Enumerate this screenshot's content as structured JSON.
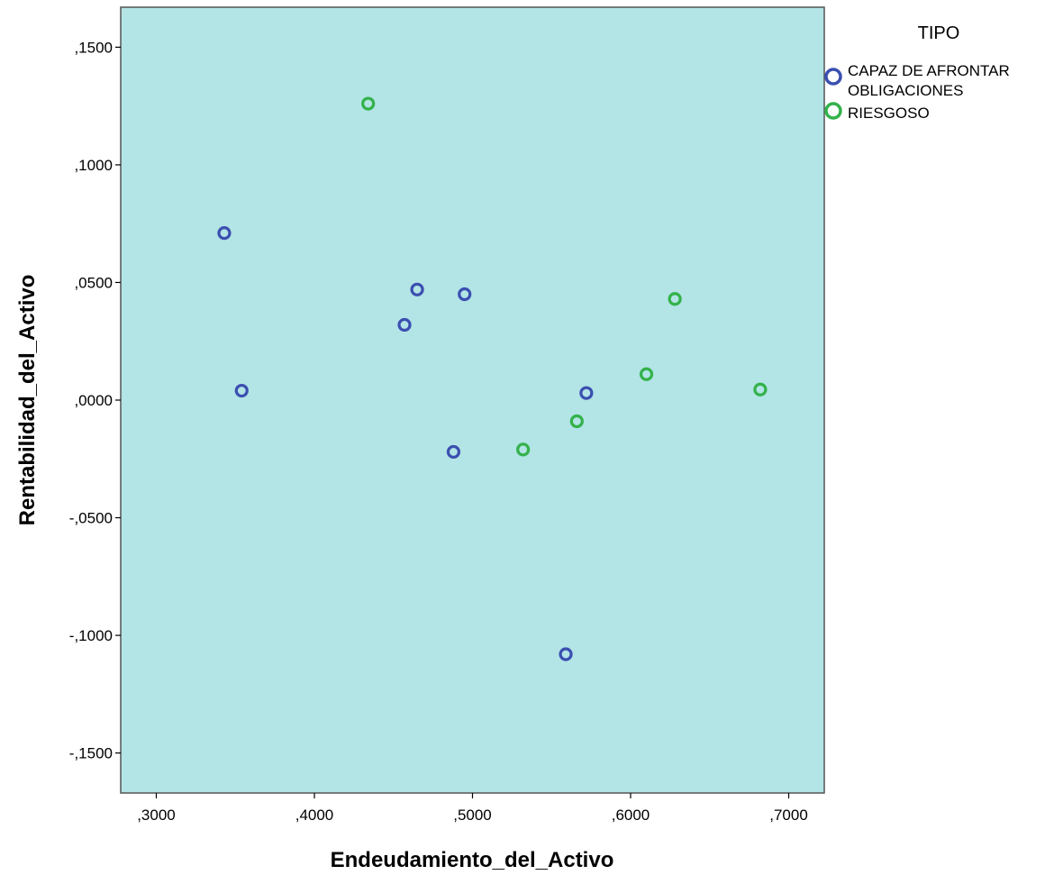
{
  "chart_data": {
    "type": "scatter",
    "xlabel": "Endeudamiento_del_Activo",
    "ylabel": "Rentabilidad_del_Activo",
    "xlim": [
      0.2775,
      0.7225
    ],
    "ylim": [
      -0.167,
      0.167
    ],
    "x_ticks": [
      0.3,
      0.4,
      0.5,
      0.6,
      0.7
    ],
    "x_tick_labels": [
      ",3000",
      ",4000",
      ",5000",
      ",6000",
      ",7000"
    ],
    "y_ticks": [
      0.15,
      0.1,
      0.05,
      0.0,
      -0.05,
      -0.1,
      -0.15
    ],
    "y_tick_labels": [
      ",1500",
      ",1000",
      ",0500",
      ",0000",
      "-,0500",
      "-,1000",
      "-,1500"
    ],
    "grid": false,
    "plot_background": "#b3e4e6",
    "legend": {
      "title": "TIPO",
      "position": "right",
      "entries": [
        {
          "label_lines": [
            "CAPAZ DE AFRONTAR",
            "OBLIGACIONES"
          ],
          "color": "#3b4fb0"
        },
        {
          "label_lines": [
            "RIESGOSO"
          ],
          "color": "#33b24a"
        }
      ]
    },
    "series": [
      {
        "name": "CAPAZ DE AFRONTAR OBLIGACIONES",
        "color": "#3b4fb0",
        "points": [
          {
            "x": 0.343,
            "y": 0.071
          },
          {
            "x": 0.354,
            "y": 0.004
          },
          {
            "x": 0.457,
            "y": 0.032
          },
          {
            "x": 0.465,
            "y": 0.047
          },
          {
            "x": 0.495,
            "y": 0.045
          },
          {
            "x": 0.488,
            "y": -0.022
          },
          {
            "x": 0.572,
            "y": 0.003
          },
          {
            "x": 0.559,
            "y": -0.108
          }
        ]
      },
      {
        "name": "RIESGOSO",
        "color": "#33b24a",
        "points": [
          {
            "x": 0.434,
            "y": 0.126
          },
          {
            "x": 0.532,
            "y": -0.021
          },
          {
            "x": 0.566,
            "y": -0.009
          },
          {
            "x": 0.61,
            "y": 0.011
          },
          {
            "x": 0.628,
            "y": 0.043
          },
          {
            "x": 0.682,
            "y": 0.0045
          }
        ]
      }
    ]
  }
}
